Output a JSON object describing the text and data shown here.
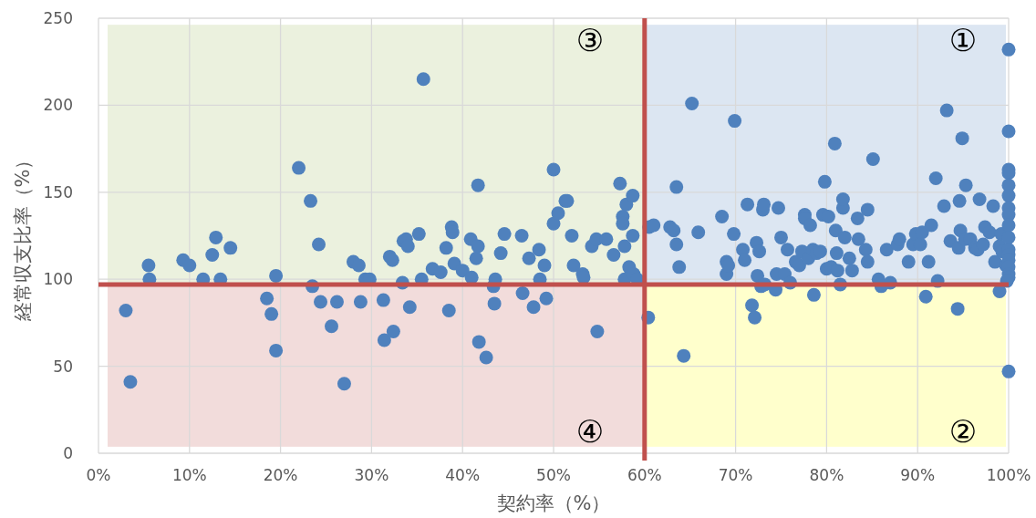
{
  "chart_data": {
    "type": "scatter",
    "xlabel": "契約率（%）",
    "ylabel": "経常収支比率（%）",
    "marker": "circle",
    "grid": true,
    "xlim": [
      0,
      100
    ],
    "ylim": [
      0,
      250
    ],
    "xticks": [
      {
        "value": 0,
        "label": "0%"
      },
      {
        "value": 10,
        "label": "10%"
      },
      {
        "value": 20,
        "label": "20%"
      },
      {
        "value": 30,
        "label": "30%"
      },
      {
        "value": 40,
        "label": "40%"
      },
      {
        "value": 50,
        "label": "50%"
      },
      {
        "value": 60,
        "label": "60%"
      },
      {
        "value": 70,
        "label": "70%"
      },
      {
        "value": 80,
        "label": "80%"
      },
      {
        "value": 90,
        "label": "90%"
      },
      {
        "value": 100,
        "label": "100%"
      }
    ],
    "yticks": [
      0,
      50,
      100,
      150,
      200,
      250
    ],
    "ref_lines": [
      {
        "axis": "x",
        "value": 60,
        "color": "#c0504d"
      },
      {
        "axis": "y",
        "value": 97,
        "color": "#c0504d"
      }
    ],
    "annotations": [
      "①",
      "②",
      "③",
      "④"
    ],
    "series": [
      {
        "color": "#4f81bd",
        "x": [
          3,
          3.5,
          5.5,
          5.6,
          9.3,
          10,
          11.5,
          12.5,
          12.9,
          13.4,
          14.5,
          18.5,
          19,
          19.5,
          19.5,
          22,
          23.3,
          23.5,
          24.2,
          24.4,
          25.6,
          26.2,
          27,
          28,
          28.6,
          28.8,
          29.3,
          29.8,
          31.3,
          31.4,
          32,
          32.3,
          32.4,
          33.4,
          33.5,
          33.8,
          34,
          34.2,
          35.2,
          35.5,
          35.7,
          36.7,
          37.6,
          38.2,
          38.5,
          38.8,
          38.9,
          39.1,
          40,
          40.9,
          41,
          41.5,
          41.7,
          41.7,
          41.8,
          42.6,
          43.5,
          43.4,
          43.6,
          44.2,
          44.6,
          46.5,
          46.6,
          47.3,
          47.8,
          48.4,
          48.5,
          49,
          49.2,
          50,
          50,
          50.5,
          51.3,
          51.5,
          52,
          52.2,
          53.2,
          53.3,
          54.2,
          54.7,
          54.8,
          55.8,
          56.6,
          57.3,
          57.6,
          57.6,
          57.8,
          57.8,
          58,
          58.3,
          58.7,
          58.7,
          58.8,
          59.2,
          60.5,
          60.4,
          61,
          62.8,
          63.2,
          63.5,
          63.5,
          63.8,
          64.3,
          65.2,
          65.9,
          68.5,
          69,
          69,
          69.2,
          69.8,
          69.9,
          70.8,
          71,
          71.3,
          71.8,
          72.1,
          72.3,
          72.4,
          72.6,
          72.8,
          73,
          73.1,
          73.2,
          74.4,
          74.5,
          74.7,
          75,
          75.4,
          75.7,
          76,
          76.6,
          77,
          77.3,
          77.6,
          77.6,
          78,
          78.2,
          78.5,
          78.6,
          78.9,
          79.3,
          79.6,
          79.8,
          80,
          80.2,
          80.5,
          80.9,
          81,
          81.1,
          81.2,
          81.5,
          81.8,
          81.8,
          82,
          82.5,
          82.8,
          83.4,
          83.5,
          84.3,
          84.5,
          84.5,
          85.1,
          85.7,
          86,
          86.6,
          87,
          87.8,
          88,
          89,
          89.5,
          89.8,
          90.3,
          90.5,
          90.9,
          91.2,
          91.5,
          92,
          92.2,
          92.9,
          93.2,
          93.6,
          94.4,
          94.5,
          94.6,
          94.7,
          94.9,
          95.2,
          95.3,
          95.8,
          96.3,
          96.6,
          96.8,
          97.2,
          97.4,
          97.9,
          98.3,
          98.5,
          99,
          99,
          99.2,
          99.3,
          99.7,
          100,
          100,
          100,
          100,
          100,
          100,
          100,
          100,
          100,
          100,
          100,
          100,
          100,
          100,
          100,
          100,
          100,
          99.8
        ],
        "values": [
          82,
          41,
          108,
          100,
          111,
          108,
          100,
          114,
          124,
          100,
          118,
          89,
          80,
          59,
          102,
          164,
          145,
          96,
          120,
          87,
          73,
          87,
          40,
          110,
          108,
          87,
          100,
          100,
          88,
          65,
          113,
          111,
          70,
          98,
          122,
          123,
          119,
          84,
          126,
          100,
          215,
          106,
          104,
          118,
          82,
          130,
          127,
          109,
          105,
          123,
          101,
          112,
          119,
          154,
          64,
          55,
          86,
          96,
          100,
          115,
          126,
          125,
          92,
          112,
          84,
          117,
          100,
          108,
          89,
          163,
          132,
          138,
          145,
          145,
          125,
          108,
          103,
          101,
          119,
          123,
          70,
          123,
          114,
          155,
          136,
          132,
          119,
          100,
          143,
          107,
          148,
          125,
          103,
          100,
          130,
          78,
          131,
          130,
          128,
          153,
          120,
          107,
          56,
          201,
          127,
          136,
          103,
          110,
          108,
          126,
          191,
          117,
          111,
          143,
          85,
          78,
          121,
          102,
          116,
          96,
          140,
          143,
          97,
          94,
          103,
          141,
          124,
          103,
          117,
          98,
          110,
          108,
          116,
          137,
          135,
          112,
          131,
          117,
          91,
          115,
          116,
          137,
          156,
          106,
          136,
          107,
          178,
          128,
          115,
          105,
          97,
          141,
          146,
          124,
          112,
          105,
          135,
          123,
          117,
          140,
          110,
          169,
          100,
          96,
          117,
          98,
          120,
          123,
          110,
          120,
          126,
          120,
          127,
          90,
          110,
          131,
          158,
          99,
          142,
          197,
          122,
          83,
          118,
          145,
          128,
          181,
          123,
          154,
          123,
          118,
          117,
          146,
          120,
          130,
          127,
          142,
          110,
          93,
          119,
          126,
          116,
          108,
          232,
          185,
          163,
          161,
          154,
          148,
          141,
          137,
          131,
          124,
          117,
          114,
          111,
          107,
          103,
          101,
          47,
          99
        ]
      }
    ]
  }
}
